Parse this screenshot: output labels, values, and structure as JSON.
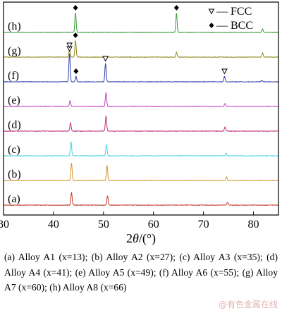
{
  "chart_data": {
    "type": "line",
    "xlabel": "2θ/(°)",
    "xlim": [
      30,
      85
    ],
    "xticks": [
      30,
      40,
      50,
      60,
      70,
      80
    ],
    "grid": false,
    "legend": {
      "placement": "top-right",
      "entries": [
        {
          "marker": "▽",
          "label": "— FCC"
        },
        {
          "marker": "◆",
          "label": "— BCC"
        }
      ]
    },
    "series": [
      {
        "name": "(a)",
        "color": "#c0392b",
        "baseline": 1,
        "peaks": [
          [
            43.6,
            18
          ],
          [
            50.8,
            13
          ],
          [
            74.8,
            4
          ]
        ],
        "markers": []
      },
      {
        "name": "(b)",
        "color": "#d4952a",
        "baseline": 1,
        "peaks": [
          [
            43.6,
            25
          ],
          [
            50.7,
            22
          ],
          [
            74.6,
            5
          ]
        ],
        "markers": []
      },
      {
        "name": "(c)",
        "color": "#49d3e0",
        "baseline": 1,
        "peaks": [
          [
            43.5,
            20
          ],
          [
            50.6,
            16
          ],
          [
            74.5,
            4
          ]
        ],
        "markers": []
      },
      {
        "name": "(d)",
        "color": "#c0307f",
        "baseline": 1,
        "peaks": [
          [
            43.4,
            12
          ],
          [
            50.5,
            22
          ],
          [
            74.3,
            6
          ]
        ],
        "markers": []
      },
      {
        "name": "(e)",
        "color": "#c83fc8",
        "baseline": 1,
        "peaks": [
          [
            43.3,
            8
          ],
          [
            50.5,
            20
          ],
          [
            74.3,
            4
          ]
        ],
        "markers": []
      },
      {
        "name": "(f)",
        "color": "#2e3ba8",
        "baseline": 1,
        "peaks": [
          [
            43.2,
            40
          ],
          [
            44.5,
            8
          ],
          [
            50.4,
            26
          ],
          [
            74.2,
            8
          ],
          [
            81.7,
            2
          ]
        ],
        "markers": [
          [
            43.2,
            "FCC"
          ],
          [
            44.5,
            "BCC"
          ],
          [
            50.4,
            "FCC"
          ],
          [
            74.2,
            "FCC"
          ]
        ]
      },
      {
        "name": "(g)",
        "color": "#8e8c1e",
        "baseline": 1,
        "peaks": [
          [
            43.2,
            10
          ],
          [
            44.4,
            24
          ],
          [
            64.6,
            7
          ],
          [
            81.8,
            6
          ]
        ],
        "markers": [
          [
            43.2,
            "FCC"
          ],
          [
            44.4,
            "BCC"
          ]
        ]
      },
      {
        "name": "(h)",
        "color": "#3a9d3a",
        "baseline": 1,
        "peaks": [
          [
            44.4,
            28
          ],
          [
            64.6,
            28
          ],
          [
            81.8,
            5
          ]
        ],
        "markers": [
          [
            44.4,
            "BCC"
          ],
          [
            64.6,
            "BCC"
          ]
        ]
      }
    ]
  },
  "caption": "(a) Alloy A1 (x=13); (b) Alloy A2 (x=27); (c) Alloy A3 (x=35); (d) Alloy A4 (x=41); (e) Alloy A5 (x=49); (f) Alloy A6 (x=55); (g) Alloy A7 (x=60); (h) Alloy A8 (x=66)",
  "watermark": "@有色金属在线"
}
